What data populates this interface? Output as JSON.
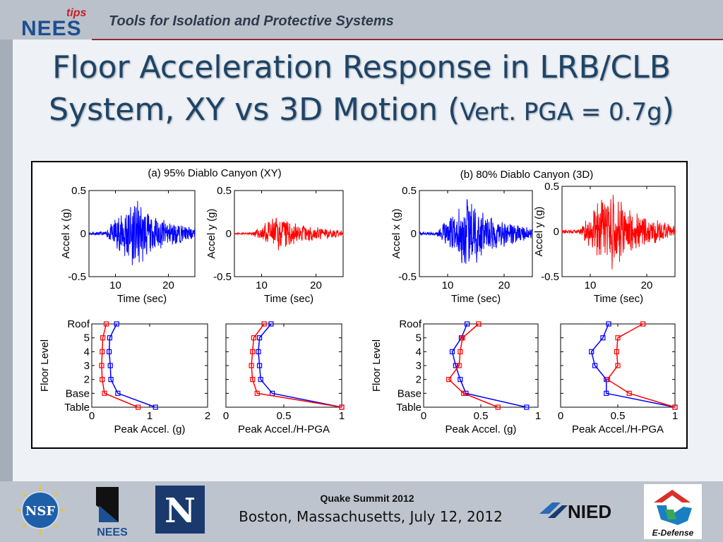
{
  "header": {
    "logo_text": "NEES",
    "logo_tips": "tips",
    "subtitle": "Tools for Isolation and Protective Systems"
  },
  "title": {
    "line1": "Floor Acceleration Response in LRB/CLB",
    "line2_a": "System, XY vs 3D Motion (",
    "line2_b": "Vert. PGA = 0.7g",
    "line2_c": ")"
  },
  "figure": {
    "panel_a_title": "(a) 95% Diablo Canyon (XY)",
    "panel_b_title": "(b) 80% Diablo Canyon (3D)"
  },
  "colors": {
    "series_1": "#0000ff",
    "series_2": "#ff0000",
    "title_text": "#1e4466"
  },
  "chart_data": [
    {
      "id": "a-accel-x",
      "type": "line",
      "title": "",
      "xlabel": "Time (sec)",
      "ylabel": "Accel x (g)",
      "xlim": [
        5,
        25
      ],
      "ylim": [
        -0.5,
        0.5
      ],
      "xticks": [
        10,
        20
      ],
      "yticks": [
        "-0.5",
        "0",
        "0.5"
      ],
      "series": [
        {
          "color": "#0000ff",
          "peak": 0.4,
          "signal": "time history"
        }
      ]
    },
    {
      "id": "a-accel-y",
      "type": "line",
      "title": "",
      "xlabel": "Time (sec)",
      "ylabel": "Accel y (g)",
      "xlim": [
        5,
        25
      ],
      "ylim": [
        -0.5,
        0.5
      ],
      "xticks": [
        10,
        20
      ],
      "yticks": [
        "-0.5",
        "0",
        "0.5"
      ],
      "series": [
        {
          "color": "#ff0000",
          "peak": 0.2,
          "signal": "time history"
        }
      ]
    },
    {
      "id": "b-accel-x",
      "type": "line",
      "title": "",
      "xlabel": "Time (sec)",
      "ylabel": "Accel x (g)",
      "xlim": [
        5,
        25
      ],
      "ylim": [
        -0.5,
        0.5
      ],
      "xticks": [
        10,
        20
      ],
      "yticks": [
        "-0.5",
        "0",
        "0.5"
      ],
      "series": [
        {
          "color": "#0000ff",
          "peak": 0.4,
          "signal": "time history"
        }
      ]
    },
    {
      "id": "b-accel-y",
      "type": "line",
      "title": "",
      "xlabel": "Time (sec)",
      "ylabel": "Accel y (g)",
      "xlim": [
        5,
        25
      ],
      "ylim": [
        -0.5,
        0.5
      ],
      "xticks": [
        10,
        20
      ],
      "yticks": [
        "-0.5",
        "0",
        "0.5"
      ],
      "series": [
        {
          "color": "#ff0000",
          "peak": 0.45,
          "signal": "time history"
        }
      ]
    },
    {
      "id": "a-peak",
      "type": "line",
      "xlabel": "Peak Accel. (g)",
      "ylabel": "Floor Level",
      "xlim": [
        0,
        2
      ],
      "xticks": [
        "0",
        "1",
        "2"
      ],
      "levels": [
        "Table",
        "Base",
        "2",
        "3",
        "4",
        "5",
        "Roof"
      ],
      "series": [
        {
          "color": "#0000ff",
          "values": [
            1.1,
            0.45,
            0.33,
            0.32,
            0.3,
            0.31,
            0.43
          ]
        },
        {
          "color": "#ff0000",
          "values": [
            0.8,
            0.22,
            0.18,
            0.17,
            0.18,
            0.19,
            0.25
          ]
        }
      ]
    },
    {
      "id": "a-norm",
      "type": "line",
      "xlabel": "Peak Accel./H-PGA",
      "ylabel": "",
      "xlim": [
        0,
        1
      ],
      "xticks": [
        "0",
        "0.5",
        "1"
      ],
      "levels": [
        "Table",
        "Base",
        "2",
        "3",
        "4",
        "5",
        "Roof"
      ],
      "series": [
        {
          "color": "#0000ff",
          "values": [
            1.0,
            0.4,
            0.3,
            0.29,
            0.28,
            0.29,
            0.39
          ]
        },
        {
          "color": "#ff0000",
          "values": [
            1.0,
            0.27,
            0.23,
            0.22,
            0.23,
            0.24,
            0.33
          ]
        }
      ]
    },
    {
      "id": "b-peak",
      "type": "line",
      "xlabel": "Peak Accel. (g)",
      "ylabel": "Floor Level",
      "xlim": [
        0,
        1
      ],
      "xticks": [
        "0",
        "0.5",
        "1"
      ],
      "levels": [
        "Table",
        "Base",
        "2",
        "3",
        "4",
        "5",
        "Roof"
      ],
      "series": [
        {
          "color": "#0000ff",
          "values": [
            0.9,
            0.37,
            0.32,
            0.28,
            0.25,
            0.33,
            0.38
          ]
        },
        {
          "color": "#ff0000",
          "values": [
            0.65,
            0.35,
            0.22,
            0.31,
            0.32,
            0.34,
            0.48
          ]
        }
      ]
    },
    {
      "id": "b-norm",
      "type": "line",
      "xlabel": "Peak Accel./H-PGA",
      "ylabel": "",
      "xlim": [
        0,
        1
      ],
      "xticks": [
        "0",
        "0.5",
        "1"
      ],
      "levels": [
        "Table",
        "Base",
        "2",
        "3",
        "4",
        "5",
        "Roof"
      ],
      "series": [
        {
          "color": "#0000ff",
          "values": [
            1.0,
            0.4,
            0.4,
            0.3,
            0.27,
            0.37,
            0.42
          ]
        },
        {
          "color": "#ff0000",
          "values": [
            1.0,
            0.6,
            0.41,
            0.5,
            0.49,
            0.5,
            0.72
          ]
        }
      ]
    }
  ],
  "footer": {
    "nsf_label": "NSF",
    "nees_label": "NEES",
    "unr_label": "N",
    "event": "Quake Summit 2012",
    "location": "Boston, Massachusetts, July 12, 2012",
    "nied_label": "NIED",
    "edefense_label": "E-Defense"
  }
}
